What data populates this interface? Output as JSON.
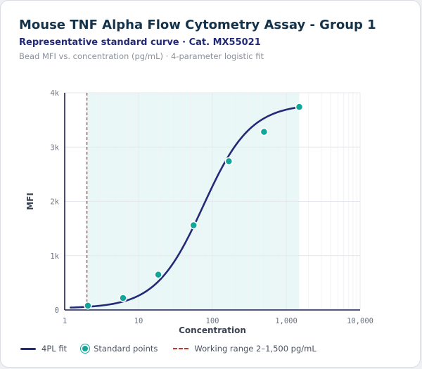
{
  "header": {
    "title": "Mouse TNF Alpha Flow Cytometry Assay - Group 1",
    "subtitle": "Representative standard curve · Cat. MX55021",
    "note": "Bead MFI vs. concentration (pg/mL) · 4-parameter logistic fit"
  },
  "chart_data": {
    "type": "scatter",
    "x_scale": "log",
    "xlim": [
      1,
      10000
    ],
    "ylim": [
      0,
      4000
    ],
    "xlabel": "Concentration",
    "ylabel": "MFI",
    "x_ticks": [
      {
        "value": 1,
        "label": "1"
      },
      {
        "value": 10,
        "label": "10"
      },
      {
        "value": 100,
        "label": "100"
      },
      {
        "value": 1000,
        "label": "1,000"
      },
      {
        "value": 10000,
        "label": "10,000"
      }
    ],
    "y_ticks": [
      {
        "value": 0,
        "label": "0"
      },
      {
        "value": 1000,
        "label": "1k"
      },
      {
        "value": 2000,
        "label": "2k"
      },
      {
        "value": 3000,
        "label": "3k"
      },
      {
        "value": 4000,
        "label": "4k"
      }
    ],
    "grid": true,
    "points": {
      "name": "Standard points",
      "color": "#12a59a",
      "x": [
        2.06,
        6.17,
        18.5,
        55.6,
        167,
        500,
        1500
      ],
      "y": [
        80,
        220,
        650,
        1560,
        2740,
        3280,
        3740
      ]
    },
    "fit": {
      "name": "4PL fit",
      "model": "4PL",
      "color": "#232a78",
      "x_range": [
        1.2,
        1500
      ],
      "params": {
        "bottom": 30,
        "top": 3800,
        "ec50": 75,
        "hill": 1.35
      }
    },
    "working_range": {
      "label": "Working range 2–1,500 pg/mL",
      "min": 2,
      "max": 1500,
      "line_color": "#c0392b",
      "band_color": "#eaf7f7"
    },
    "legend_position": "bottom-left"
  }
}
